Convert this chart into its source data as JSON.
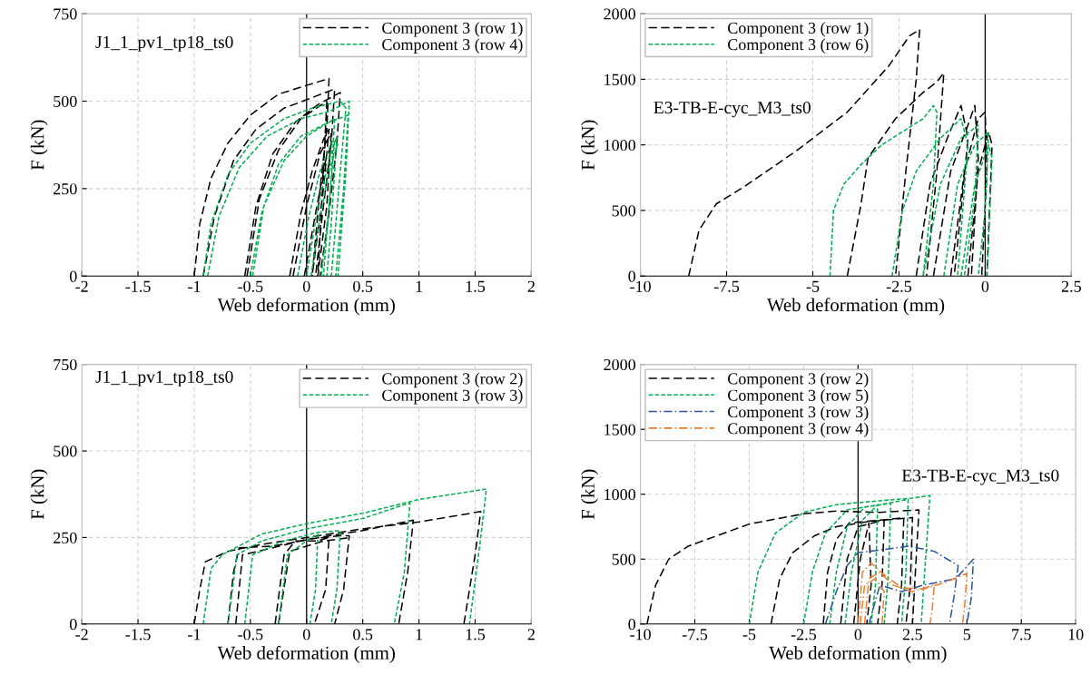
{
  "chart_data": [
    {
      "type": "line",
      "xlabel": "Web deformation (mm)",
      "ylabel": "F (kN)",
      "xlim": [
        -2,
        2
      ],
      "xticks": [
        -2,
        -1.5,
        -1,
        -0.5,
        0,
        0.5,
        1,
        1.5,
        2
      ],
      "ylim": [
        0,
        750
      ],
      "yticks": [
        0,
        250,
        500,
        750
      ],
      "grid": true,
      "legend": "top right",
      "annotations": [
        "J1_1_pv1_tp18_ts0"
      ],
      "ref_lines": [
        {
          "axis": "x",
          "value": 0,
          "color": "#000000"
        }
      ],
      "series": [
        {
          "name": "Component 3 (row 1)",
          "color": "#000000",
          "line_style": "dashed",
          "x": [
            -1.0,
            -0.95,
            -0.85,
            -0.7,
            -0.5,
            -0.25,
            0,
            0.2,
            0.18,
            0.12,
            0.05,
            null,
            -0.92,
            -0.82,
            -0.65,
            -0.45,
            -0.2,
            0.05,
            0.25,
            0.22,
            0.15,
            0.08,
            null,
            -0.55,
            -0.45,
            -0.3,
            -0.1,
            0.1,
            0.3,
            0.27,
            0.2,
            0.12,
            null,
            -0.53,
            -0.42,
            -0.25,
            -0.05,
            0.18,
            0.15,
            0.1,
            null,
            -0.15,
            -0.05,
            0.05,
            0.15,
            0.2,
            0.15,
            0.05,
            null,
            -0.12,
            0,
            0.12,
            0.22,
            0.18,
            0.1,
            null,
            -0.02,
            0.08,
            0.17,
            0.2
          ],
          "values": [
            0,
            150,
            280,
            380,
            460,
            520,
            545,
            565,
            420,
            250,
            0,
            null,
            0,
            170,
            330,
            420,
            480,
            510,
            535,
            380,
            200,
            0,
            null,
            0,
            200,
            350,
            440,
            490,
            525,
            380,
            180,
            0,
            null,
            0,
            220,
            360,
            450,
            500,
            300,
            0,
            null,
            0,
            180,
            300,
            390,
            420,
            250,
            0,
            null,
            0,
            200,
            350,
            410,
            200,
            0,
            null,
            0,
            180,
            330,
            360
          ]
        },
        {
          "name": "Component 3 (row 4)",
          "color": "#00b050",
          "line_style": "dotted",
          "x": [
            -0.92,
            -0.85,
            -0.7,
            -0.5,
            -0.2,
            0.05,
            0.3,
            0.35,
            0.3,
            0.22,
            null,
            -0.88,
            -0.78,
            -0.6,
            -0.35,
            -0.05,
            0.2,
            0.38,
            0.35,
            0.28,
            null,
            -0.5,
            -0.4,
            -0.25,
            -0.05,
            0.2,
            0.37,
            0.33,
            0.26,
            null,
            -0.48,
            -0.38,
            -0.2,
            0,
            0.25,
            0.22,
            0.15,
            null,
            -0.08,
            0.02,
            0.12,
            0.22,
            0.25,
            0.2,
            0.13,
            null,
            0,
            0.1,
            0.2,
            0.27,
            0.22,
            0.18,
            null,
            0.04,
            0.12,
            0.2,
            0.28
          ],
          "values": [
            0,
            150,
            290,
            380,
            450,
            480,
            500,
            480,
            300,
            0,
            null,
            0,
            170,
            310,
            400,
            450,
            470,
            500,
            300,
            0,
            null,
            0,
            180,
            320,
            400,
            440,
            460,
            250,
            0,
            null,
            0,
            200,
            330,
            400,
            450,
            280,
            0,
            null,
            0,
            170,
            300,
            380,
            390,
            200,
            0,
            null,
            0,
            200,
            330,
            400,
            150,
            0,
            null,
            0,
            170,
            300,
            380
          ]
        }
      ]
    },
    {
      "type": "line",
      "xlabel": "Web deformation (mm)",
      "ylabel": "F (kN)",
      "xlim": [
        -10,
        2.5
      ],
      "xticks": [
        -10,
        -7.5,
        -5,
        -2.5,
        0,
        2.5
      ],
      "ylim": [
        0,
        2000
      ],
      "yticks": [
        0,
        500,
        1000,
        1500,
        2000
      ],
      "grid": true,
      "legend": "top left",
      "annotations": [
        "E3-TB-E-cyc_M3_ts0"
      ],
      "ref_lines": [
        {
          "axis": "x",
          "value": 0,
          "color": "#000000"
        }
      ],
      "series": [
        {
          "name": "Component 3 (row 1)",
          "color": "#000000",
          "line_style": "dashed",
          "x": [
            -8.6,
            -8.3,
            -7.8,
            -7.0,
            -5.5,
            -4.0,
            -2.8,
            -2.2,
            -1.9,
            -2.0,
            -2.3,
            -2.6,
            null,
            -4.0,
            -3.6,
            -3.4,
            -2.6,
            -1.8,
            -1.4,
            -1.2,
            -1.4,
            -1.7,
            null,
            -2.0,
            -1.6,
            -1.1,
            -0.7,
            -0.5,
            -0.7,
            -0.9,
            null,
            -1.5,
            -1.0,
            -0.5,
            -0.3,
            -0.2,
            -0.4,
            null,
            -1.0,
            -0.6,
            -0.2,
            0,
            0.05,
            -0.1,
            null,
            -0.5,
            -0.2,
            0.1,
            0.2,
            0.05
          ],
          "values": [
            0,
            350,
            550,
            680,
            950,
            1250,
            1600,
            1830,
            1880,
            1500,
            800,
            0,
            null,
            0,
            550,
            900,
            1200,
            1400,
            1480,
            1550,
            800,
            0,
            null,
            0,
            700,
            1050,
            1300,
            1050,
            500,
            0,
            null,
            0,
            800,
            1150,
            1300,
            900,
            0,
            null,
            0,
            800,
            1200,
            1250,
            800,
            0,
            null,
            0,
            800,
            1100,
            1000,
            0
          ]
        },
        {
          "name": "Component 3 (row 6)",
          "color": "#00b050",
          "line_style": "dotted",
          "x": [
            -4.5,
            -4.4,
            -4.1,
            -3.6,
            -3.0,
            -2.4,
            -1.8,
            -1.5,
            -1.4,
            -1.5,
            -1.8,
            null,
            -2.7,
            -2.4,
            -2.0,
            -1.3,
            -0.7,
            -0.5,
            -0.8,
            null,
            -1.8,
            -1.3,
            -0.7,
            -0.2,
            -0.3,
            -0.6,
            null,
            -1.2,
            -0.8,
            -0.3,
            0.1,
            0,
            -0.2,
            null,
            -0.7,
            -0.3,
            0.1,
            0.2,
            0.05
          ],
          "values": [
            0,
            500,
            700,
            850,
            1000,
            1100,
            1200,
            1300,
            1250,
            700,
            0,
            null,
            0,
            500,
            800,
            1050,
            1200,
            1000,
            0,
            null,
            0,
            700,
            1050,
            1150,
            600,
            0,
            null,
            0,
            700,
            1000,
            1100,
            500,
            0,
            null,
            0,
            700,
            1000,
            900,
            0
          ]
        }
      ]
    },
    {
      "type": "line",
      "xlabel": "Web deformation (mm)",
      "ylabel": "F (kN)",
      "xlim": [
        -2,
        2
      ],
      "xticks": [
        -2,
        -1.5,
        -1,
        -0.5,
        0,
        0.5,
        1,
        1.5,
        2
      ],
      "ylim": [
        0,
        750
      ],
      "yticks": [
        0,
        250,
        500,
        750
      ],
      "grid": true,
      "legend": "top right",
      "annotations": [
        "J1_1_pv1_tp18_ts0"
      ],
      "ref_lines": [
        {
          "axis": "x",
          "value": 0,
          "color": "#000000"
        }
      ],
      "series": [
        {
          "name": "Component 3 (row 2)",
          "color": "#000000",
          "line_style": "dashed",
          "x": [
            -1.0,
            -0.95,
            -0.9,
            -0.7,
            -0.4,
            0,
            0.5,
            1.0,
            1.55,
            1.5,
            1.4,
            null,
            -0.7,
            -0.65,
            -0.6,
            -0.3,
            0.2,
            0.5,
            0.95,
            0.9,
            0.82,
            null,
            -0.63,
            -0.57,
            -0.3,
            0,
            0.3,
            0.38,
            0.33,
            0.25,
            null,
            -0.28,
            -0.2,
            -0.1,
            0.1,
            0.2,
            0.17,
            0.07,
            null,
            -0.25,
            -0.15,
            0.15,
            0.4
          ],
          "values": [
            0,
            100,
            180,
            210,
            230,
            250,
            275,
            295,
            325,
            200,
            0,
            null,
            0,
            150,
            220,
            225,
            255,
            270,
            300,
            150,
            0,
            null,
            0,
            200,
            220,
            245,
            255,
            255,
            100,
            0,
            null,
            0,
            200,
            240,
            240,
            250,
            100,
            0,
            null,
            0,
            210,
            240,
            250
          ]
        },
        {
          "name": "Component 3 (row 3)",
          "color": "#00b050",
          "line_style": "dotted",
          "x": [
            -0.92,
            -0.85,
            -0.75,
            -0.4,
            0,
            0.5,
            1.0,
            1.6,
            1.55,
            1.45,
            null,
            -0.7,
            -0.62,
            -0.4,
            0,
            0.5,
            0.92,
            0.87,
            0.78,
            null,
            -0.55,
            -0.48,
            -0.2,
            0.1,
            0.3,
            0.27,
            0.22,
            null,
            -0.25,
            -0.17,
            0,
            0.1,
            0.08,
            0.03
          ],
          "values": [
            0,
            160,
            200,
            260,
            290,
            320,
            360,
            390,
            250,
            0,
            null,
            0,
            200,
            240,
            275,
            305,
            350,
            150,
            0,
            null,
            0,
            200,
            240,
            265,
            270,
            100,
            0,
            null,
            0,
            200,
            240,
            260,
            100,
            0
          ]
        }
      ]
    },
    {
      "type": "line",
      "xlabel": "Web deformation (mm)",
      "ylabel": "F (kN)",
      "xlim": [
        -10,
        10
      ],
      "xticks": [
        -10,
        -7.5,
        -5,
        -2.5,
        0,
        2.5,
        5,
        7.5,
        10
      ],
      "ylim": [
        0,
        2000
      ],
      "yticks": [
        0,
        500,
        1000,
        1500,
        2000
      ],
      "grid": true,
      "legend": "top left",
      "annotations": [
        "E3-TB-E-cyc_M3_ts0"
      ],
      "ref_lines": [
        {
          "axis": "x",
          "value": 0,
          "color": "#000000"
        }
      ],
      "series": [
        {
          "name": "Component 3 (row 2)",
          "color": "#000000",
          "line_style": "dashed",
          "x": [
            -9.7,
            -9.3,
            -8.7,
            -7.8,
            -5,
            -2.5,
            -1,
            1,
            2.8,
            2.7,
            2.5,
            null,
            -4.0,
            -3.6,
            -3,
            -2,
            -1,
            0.5,
            2.5,
            2.4,
            2.2,
            null,
            -1.6,
            -1.4,
            -1,
            -0.4,
            1,
            2.1,
            2.0,
            1.8,
            null,
            -0.8,
            -0.5,
            0,
            1.2,
            1.1,
            0.9,
            null,
            -0.2,
            0.1,
            0.5,
            0.6,
            0.4
          ],
          "values": [
            0,
            300,
            500,
            600,
            770,
            850,
            870,
            860,
            880,
            600,
            0,
            null,
            0,
            350,
            550,
            680,
            750,
            790,
            820,
            300,
            0,
            null,
            0,
            400,
            650,
            780,
            800,
            820,
            300,
            0,
            null,
            0,
            500,
            750,
            800,
            300,
            0,
            null,
            0,
            500,
            780,
            300,
            0
          ]
        },
        {
          "name": "Component 3 (row 5)",
          "color": "#00b050",
          "line_style": "dotted",
          "x": [
            -5.0,
            -4.6,
            -3.8,
            -2.5,
            -1,
            1,
            2.5,
            3.3,
            3.1,
            2.9,
            null,
            -2.5,
            -2.1,
            -1.5,
            -0.5,
            1,
            2.3,
            2.2,
            2.0,
            null,
            -1.3,
            -1,
            -0.5,
            0.3,
            1.5,
            1.4,
            1.2,
            null,
            -0.6,
            -0.3,
            0.2,
            0.9,
            0.8,
            0.6
          ],
          "values": [
            0,
            400,
            700,
            860,
            920,
            950,
            970,
            990,
            500,
            0,
            null,
            0,
            400,
            700,
            880,
            920,
            960,
            400,
            0,
            null,
            0,
            400,
            750,
            900,
            930,
            400,
            0,
            null,
            0,
            400,
            800,
            920,
            300,
            0
          ]
        },
        {
          "name": "Component 3 (row 3)",
          "color": "#2f5597",
          "line_style": "dashdot",
          "x": [
            -1.5,
            -1.0,
            -0.5,
            0,
            1,
            2.3,
            3.5,
            4.6,
            4.4,
            4.2,
            null,
            0.5,
            1,
            2,
            3,
            4.5,
            5.3,
            5.2,
            5.0
          ],
          "values": [
            0,
            250,
            450,
            550,
            570,
            600,
            560,
            450,
            200,
            0,
            null,
            0,
            300,
            250,
            300,
            350,
            500,
            200,
            0
          ]
        },
        {
          "name": "Component 3 (row 4)",
          "color": "#ed7d31",
          "line_style": "dashdot",
          "x": [
            0,
            0.2,
            0.6,
            1.2,
            2,
            3,
            4,
            5.0,
            4.9,
            4.8,
            null,
            0.3,
            0.5,
            1,
            1.6,
            2.5,
            3.5,
            3.4,
            3.3,
            null,
            0.1,
            0.3,
            0.8,
            1.2,
            1.1
          ],
          "values": [
            0,
            400,
            470,
            380,
            280,
            270,
            320,
            390,
            150,
            0,
            null,
            0,
            350,
            400,
            300,
            250,
            300,
            100,
            0,
            null,
            0,
            300,
            350,
            250,
            0
          ]
        }
      ]
    }
  ]
}
